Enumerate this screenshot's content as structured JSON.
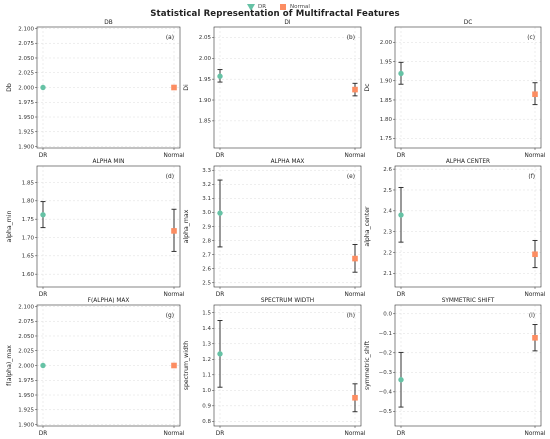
{
  "title": "Statistical Representation of Multifractal Features",
  "legend": [
    {
      "label": "DR",
      "color": "#66c2a5",
      "marker": "triangle-down"
    },
    {
      "label": "Normal",
      "color": "#fc8d62",
      "marker": "square"
    }
  ],
  "colors": {
    "DR": "#66c2a5",
    "Normal": "#fc8d62",
    "errorbar": "#333333",
    "grid": "#dddddd"
  },
  "chart_data": [
    {
      "type": "scatter",
      "title": "DB",
      "panel_label": "(a)",
      "ylabel": "Db",
      "categories": [
        "DR",
        "Normal"
      ],
      "ylim": [
        1.8975,
        2.1025
      ],
      "yticks": [
        1.9,
        1.925,
        1.95,
        1.975,
        2.0,
        2.025,
        2.05,
        2.075,
        2.1
      ],
      "ytick_labels": [
        "1.900",
        "1.925",
        "1.950",
        "1.975",
        "2.000",
        "2.025",
        "2.050",
        "2.075",
        "2.100"
      ],
      "series": [
        {
          "name": "DR",
          "mean": 2.0,
          "err_low": 2.0,
          "err_high": 2.0
        },
        {
          "name": "Normal",
          "mean": 2.0,
          "err_low": 2.0,
          "err_high": 2.0
        }
      ]
    },
    {
      "type": "scatter",
      "title": "DI",
      "panel_label": "(b)",
      "ylabel": "Di",
      "categories": [
        "DR",
        "Normal"
      ],
      "ylim": [
        1.785,
        2.075
      ],
      "yticks": [
        1.85,
        1.9,
        1.95,
        2.0,
        2.05
      ],
      "ytick_labels": [
        "1.85",
        "1.90",
        "1.95",
        "2.00",
        "2.05"
      ],
      "series": [
        {
          "name": "DR",
          "mean": 1.957,
          "err_low": 1.943,
          "err_high": 1.973
        },
        {
          "name": "Normal",
          "mean": 1.925,
          "err_low": 1.91,
          "err_high": 1.94
        }
      ]
    },
    {
      "type": "scatter",
      "title": "DC",
      "panel_label": "(c)",
      "ylabel": "Dc",
      "categories": [
        "DR",
        "Normal"
      ],
      "ylim": [
        1.725,
        2.04
      ],
      "yticks": [
        1.75,
        1.8,
        1.85,
        1.9,
        1.95,
        2.0
      ],
      "ytick_labels": [
        "1.75",
        "1.80",
        "1.85",
        "1.90",
        "1.95",
        "2.00"
      ],
      "series": [
        {
          "name": "DR",
          "mean": 1.919,
          "err_low": 1.891,
          "err_high": 1.948
        },
        {
          "name": "Normal",
          "mean": 1.865,
          "err_low": 1.838,
          "err_high": 1.895
        }
      ]
    },
    {
      "type": "scatter",
      "title": "ALPHA MIN",
      "panel_label": "(d)",
      "ylabel": "alpha_min",
      "categories": [
        "DR",
        "Normal"
      ],
      "ylim": [
        1.565,
        1.895
      ],
      "yticks": [
        1.6,
        1.65,
        1.7,
        1.75,
        1.8,
        1.85
      ],
      "ytick_labels": [
        "1.60",
        "1.65",
        "1.70",
        "1.75",
        "1.80",
        "1.85"
      ],
      "series": [
        {
          "name": "DR",
          "mean": 1.762,
          "err_low": 1.727,
          "err_high": 1.798
        },
        {
          "name": "Normal",
          "mean": 1.718,
          "err_low": 1.662,
          "err_high": 1.777
        }
      ]
    },
    {
      "type": "scatter",
      "title": "ALPHA MAX",
      "panel_label": "(e)",
      "ylabel": "alpha_max",
      "categories": [
        "DR",
        "Normal"
      ],
      "ylim": [
        2.47,
        3.33
      ],
      "yticks": [
        2.5,
        2.6,
        2.7,
        2.8,
        2.9,
        3.0,
        3.1,
        3.2,
        3.3
      ],
      "ytick_labels": [
        "2.5",
        "2.6",
        "2.7",
        "2.8",
        "2.9",
        "3.0",
        "3.1",
        "3.2",
        "3.3"
      ],
      "series": [
        {
          "name": "DR",
          "mean": 2.995,
          "err_low": 2.755,
          "err_high": 3.23
        },
        {
          "name": "Normal",
          "mean": 2.672,
          "err_low": 2.575,
          "err_high": 2.772
        }
      ]
    },
    {
      "type": "scatter",
      "title": "ALPHA CENTER",
      "panel_label": "(f)",
      "ylabel": "alpha_center",
      "categories": [
        "DR",
        "Normal"
      ],
      "ylim": [
        2.035,
        2.615
      ],
      "yticks": [
        2.1,
        2.2,
        2.3,
        2.4,
        2.5,
        2.6
      ],
      "ytick_labels": [
        "2.1",
        "2.2",
        "2.3",
        "2.4",
        "2.5",
        "2.6"
      ],
      "series": [
        {
          "name": "DR",
          "mean": 2.38,
          "err_low": 2.25,
          "err_high": 2.512
        },
        {
          "name": "Normal",
          "mean": 2.192,
          "err_low": 2.128,
          "err_high": 2.258
        }
      ]
    },
    {
      "type": "scatter",
      "title": "F(ALPHA) MAX",
      "panel_label": "(g)",
      "ylabel": "f(alpha)_max",
      "categories": [
        "DR",
        "Normal"
      ],
      "ylim": [
        1.8975,
        2.1025
      ],
      "yticks": [
        1.9,
        1.925,
        1.95,
        1.975,
        2.0,
        2.025,
        2.05,
        2.075,
        2.1
      ],
      "ytick_labels": [
        "1.900",
        "1.925",
        "1.950",
        "1.975",
        "2.000",
        "2.025",
        "2.050",
        "2.075",
        "2.100"
      ],
      "series": [
        {
          "name": "DR",
          "mean": 2.0,
          "err_low": 2.0,
          "err_high": 2.0
        },
        {
          "name": "Normal",
          "mean": 2.0,
          "err_low": 2.0,
          "err_high": 2.0
        }
      ]
    },
    {
      "type": "scatter",
      "title": "SPECTRUM WIDTH",
      "panel_label": "(h)",
      "ylabel": "spectrum_width",
      "categories": [
        "DR",
        "Normal"
      ],
      "ylim": [
        0.77,
        1.55
      ],
      "yticks": [
        0.8,
        0.9,
        1.0,
        1.1,
        1.2,
        1.3,
        1.4,
        1.5
      ],
      "ytick_labels": [
        "0.8",
        "0.9",
        "1.0",
        "1.1",
        "1.2",
        "1.3",
        "1.4",
        "1.5"
      ],
      "series": [
        {
          "name": "DR",
          "mean": 1.235,
          "err_low": 1.02,
          "err_high": 1.45
        },
        {
          "name": "Normal",
          "mean": 0.952,
          "err_low": 0.862,
          "err_high": 1.042
        }
      ]
    },
    {
      "type": "scatter",
      "title": "SYMMETRIC SHIFT",
      "panel_label": "(i)",
      "ylabel": "symmetric_shift",
      "categories": [
        "DR",
        "Normal"
      ],
      "ylim": [
        -0.575,
        0.045
      ],
      "yticks": [
        -0.5,
        -0.4,
        -0.3,
        -0.2,
        -0.1,
        0.0
      ],
      "ytick_labels": [
        "−0.5",
        "−0.4",
        "−0.3",
        "−0.2",
        "−0.1",
        "0.0"
      ],
      "series": [
        {
          "name": "DR",
          "mean": -0.338,
          "err_low": -0.478,
          "err_high": -0.198
        },
        {
          "name": "Normal",
          "mean": -0.123,
          "err_low": -0.19,
          "err_high": -0.055
        }
      ]
    }
  ]
}
